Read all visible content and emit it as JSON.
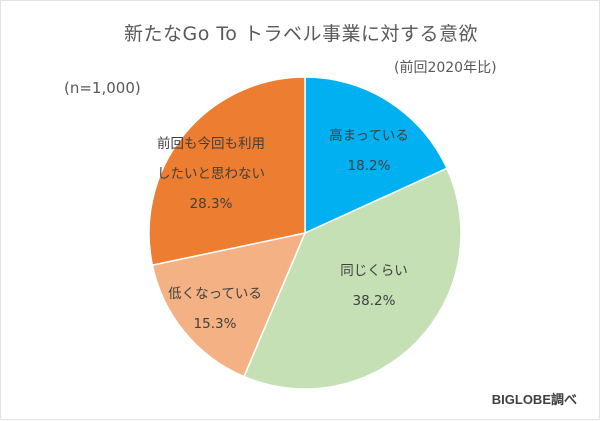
{
  "header": {
    "title": "新たなGo To トラベル事業に対する意欲",
    "subtitle": "(前回2020年比)",
    "sample_size": "(n=1,000)"
  },
  "footer": {
    "source": "BIGLOBE調べ"
  },
  "colors": {
    "increased": "#00b0f0",
    "same": "#c5e0b4",
    "decreased": "#f4b183",
    "never": "#ed7d31",
    "separator": "#ffffff",
    "text": "#595959"
  },
  "slices": [
    {
      "key": "increased",
      "label_lines": [
        "高まっている"
      ],
      "value_label": "18.2%"
    },
    {
      "key": "same",
      "label_lines": [
        "同じくらい"
      ],
      "value_label": "38.2%"
    },
    {
      "key": "decreased",
      "label_lines": [
        "低くなっている"
      ],
      "value_label": "15.3%"
    },
    {
      "key": "never",
      "label_lines": [
        "前回も今回も利用",
        "したいと思わない"
      ],
      "value_label": "28.3%"
    }
  ],
  "chart_data": {
    "type": "pie",
    "title": "新たなGo To トラベル事業に対する意欲",
    "subtitle": "(前回2020年比)",
    "annotations": [
      "(n=1,000)",
      "BIGLOBE調べ"
    ],
    "categories": [
      "高まっている",
      "同じくらい",
      "低くなっている",
      "前回も今回も利用したいと思わない"
    ],
    "values": [
      18.2,
      38.2,
      15.3,
      28.3
    ],
    "unit": "%",
    "colors": [
      "#00b0f0",
      "#c5e0b4",
      "#f4b183",
      "#ed7d31"
    ],
    "start_angle": "12 o'clock",
    "direction": "clockwise",
    "legend": "none (data labels inside slices)"
  }
}
